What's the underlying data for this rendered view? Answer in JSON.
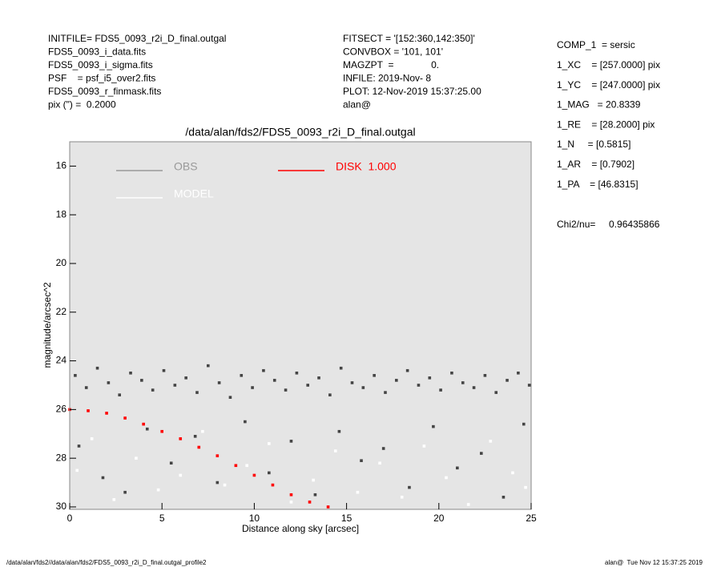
{
  "header": {
    "left": [
      "INITFILE= FDS5_0093_r2i_D_final.outgal",
      "FDS5_0093_i_data.fits",
      "FDS5_0093_i_sigma.fits",
      "PSF    = psf_i5_over2.fits",
      "FDS5_0093_r_finmask.fits",
      "pix (\") =  0.2000"
    ],
    "middle": [
      "FITSECT = '[152:360,142:350]'",
      "CONVBOX = '101, 101'",
      "MAGZPT  =              0.",
      "INFILE: 2019-Nov- 8",
      "PLOT: 12-Nov-2019 15:37:25.00",
      "alan@"
    ],
    "right": [
      "COMP_1  = sersic",
      "1_XC    = [257.0000] pix",
      "1_YC    = [247.0000] pix",
      "1_MAG   = 20.8339",
      "1_RE    = [28.2000] pix",
      "1_N     = [0.5815]",
      "1_AR    = [0.7902]",
      "1_PA    = [46.8315]"
    ],
    "chi2": "Chi2/nu=     0.96435866"
  },
  "footer": {
    "left": "/data/alan/fds2//data/alan/fds2/FDS5_0093_r2i_D_final.outgal_profile2",
    "right": "alan@  Tue Nov 12 15:37:25 2019"
  },
  "chart_data": {
    "type": "scatter",
    "title": "/data/alan/fds2/FDS5_0093_r2i_D_final.outgal",
    "x_label": "Distance along sky [arcsec]",
    "y_label": "magnitude/arcsec^2",
    "xlim": [
      0,
      25
    ],
    "ylim": [
      30.1,
      15
    ],
    "xticks": [
      0,
      5,
      10,
      15,
      20,
      25
    ],
    "yticks": [
      16,
      18,
      20,
      22,
      24,
      26,
      28,
      30
    ],
    "background": "#e5e5e5",
    "series": [
      {
        "name": "OBS",
        "color": "#444444",
        "legend_color": "#999999",
        "x": [
          0.3,
          0.9,
          1.5,
          2.1,
          2.7,
          3.3,
          3.9,
          4.5,
          5.1,
          5.7,
          6.3,
          6.9,
          7.5,
          8.1,
          8.7,
          9.3,
          9.9,
          10.5,
          11.1,
          11.7,
          12.3,
          12.9,
          13.5,
          14.1,
          14.7,
          15.3,
          15.9,
          16.5,
          17.1,
          17.7,
          18.3,
          18.9,
          19.5,
          20.1,
          20.7,
          21.3,
          21.9,
          22.5,
          23.1,
          23.7,
          24.3,
          24.9,
          0.5,
          1.8,
          3.0,
          4.2,
          5.5,
          6.8,
          8.0,
          9.5,
          10.8,
          12.0,
          13.3,
          14.6,
          15.8,
          17.0,
          18.4,
          19.7,
          21.0,
          22.3,
          23.5,
          24.6
        ],
        "values": [
          24.6,
          25.1,
          24.3,
          24.9,
          25.4,
          24.5,
          24.8,
          25.2,
          24.4,
          25.0,
          24.7,
          25.3,
          24.2,
          24.9,
          25.5,
          24.6,
          25.1,
          24.4,
          24.8,
          25.2,
          24.5,
          25.0,
          24.7,
          25.4,
          24.3,
          24.9,
          25.1,
          24.6,
          25.3,
          24.8,
          24.4,
          25.0,
          24.7,
          25.2,
          24.5,
          24.9,
          25.1,
          24.6,
          25.3,
          24.8,
          24.5,
          25.0,
          27.5,
          28.8,
          29.4,
          26.8,
          28.2,
          27.1,
          29.0,
          26.5,
          28.6,
          27.3,
          29.5,
          26.9,
          28.1,
          27.6,
          29.2,
          26.7,
          28.4,
          27.8,
          29.6,
          26.6
        ]
      },
      {
        "name": "MODEL",
        "color": "#ffffff",
        "legend_color": "#ffffff",
        "x": [
          0.4,
          1.2,
          2.4,
          3.6,
          4.8,
          6.0,
          7.2,
          8.4,
          9.6,
          10.8,
          12.0,
          13.2,
          14.4,
          15.6,
          16.8,
          18.0,
          19.2,
          20.4,
          21.6,
          22.8,
          24.0,
          24.7
        ],
        "values": [
          28.5,
          27.2,
          29.7,
          28.0,
          29.3,
          28.7,
          26.9,
          29.1,
          28.3,
          27.4,
          29.8,
          28.9,
          27.7,
          29.4,
          28.2,
          29.6,
          27.5,
          28.8,
          29.9,
          27.3,
          28.6,
          29.2
        ]
      },
      {
        "name": "DISK  1.000",
        "color": "#ff0000",
        "legend_color": "#ff0000",
        "x": [
          0,
          1,
          2,
          3,
          4,
          5,
          6,
          7,
          8,
          9,
          10,
          11,
          12,
          13,
          14
        ],
        "values": [
          26.0,
          26.05,
          26.15,
          26.35,
          26.6,
          26.9,
          27.2,
          27.55,
          27.9,
          28.3,
          28.7,
          29.1,
          29.5,
          29.8,
          30.0
        ]
      }
    ]
  }
}
